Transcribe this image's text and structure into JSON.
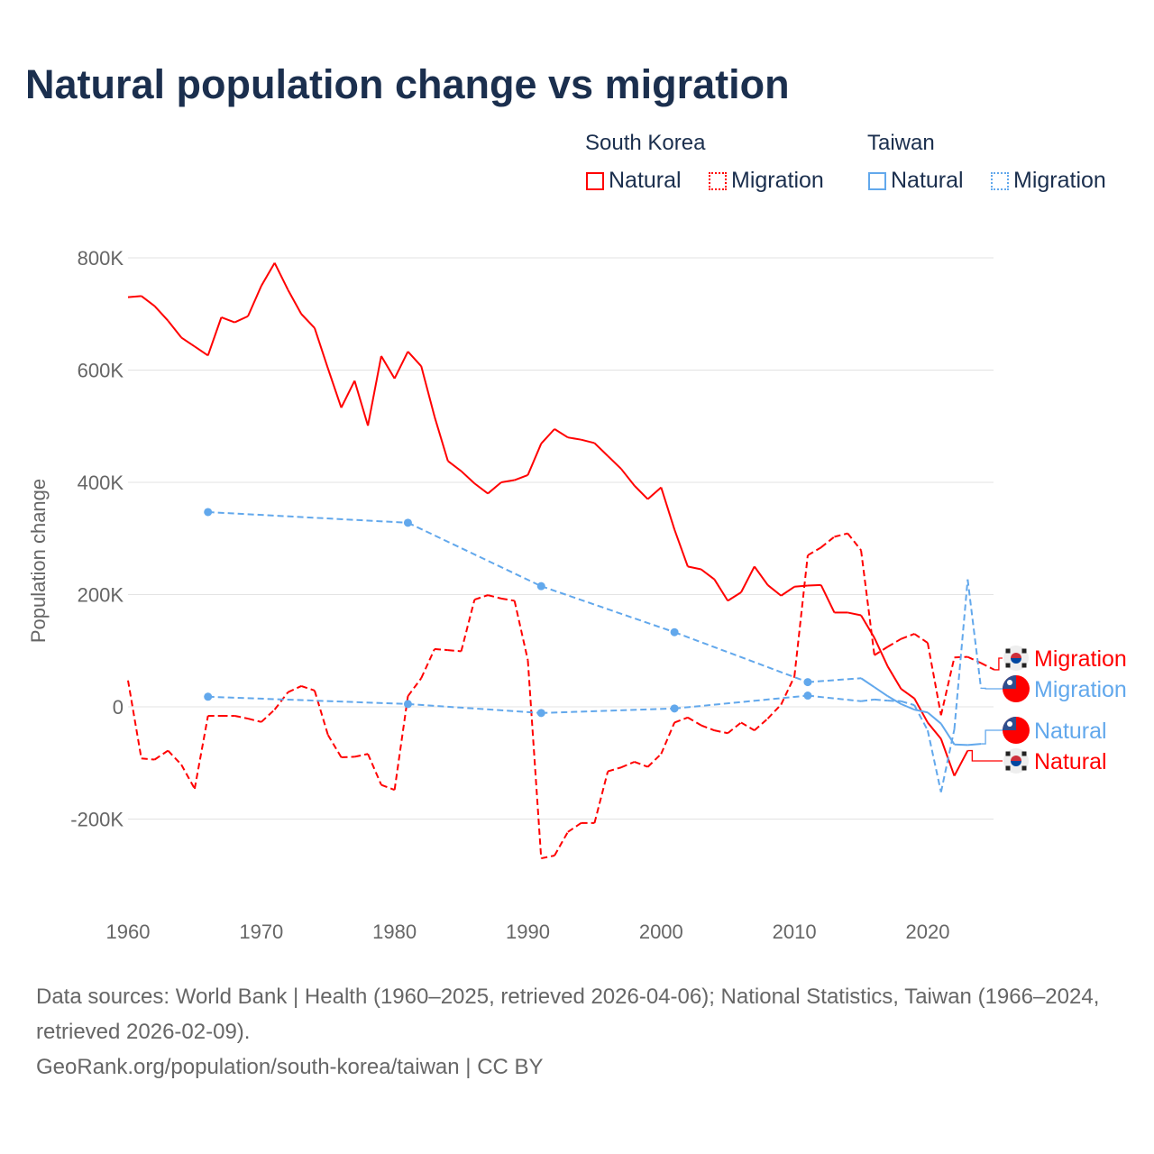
{
  "title": "Natural population change vs migration",
  "legend": {
    "groups": [
      {
        "name": "South Korea",
        "items": [
          "Natural",
          "Migration"
        ],
        "color": "#ff0000"
      },
      {
        "name": "Taiwan",
        "items": [
          "Natural",
          "Migration"
        ],
        "color": "#62a8ec"
      }
    ]
  },
  "footer": {
    "sources": "Data sources: World Bank | Health (1960–2025, retrieved 2026-04-06); National Statistics, Taiwan (1966–2024, retrieved 2026-02-09).",
    "credit": "GeoRank.org/population/south-korea/taiwan | CC BY"
  },
  "chart_data": {
    "type": "line",
    "title": "Natural population change vs migration",
    "xlabel": "",
    "ylabel": "Population change",
    "xlim": [
      1960,
      2025
    ],
    "ylim": [
      -300000,
      850000
    ],
    "xticks": [
      1960,
      1970,
      1980,
      1990,
      2000,
      2010,
      2020
    ],
    "yticks": [
      {
        "v": -200000,
        "label": "-200K"
      },
      {
        "v": 0,
        "label": "0"
      },
      {
        "v": 200000,
        "label": "200K"
      },
      {
        "v": 400000,
        "label": "400K"
      },
      {
        "v": 600000,
        "label": "600K"
      },
      {
        "v": 800000,
        "label": "800K"
      }
    ],
    "grid": true,
    "series": [
      {
        "name": "South Korea Natural",
        "label": "Natural",
        "country": "South Korea",
        "color": "#ff0000",
        "style": "solid",
        "x": [
          1960,
          1961,
          1962,
          1963,
          1964,
          1965,
          1966,
          1967,
          1968,
          1969,
          1970,
          1971,
          1972,
          1973,
          1974,
          1975,
          1976,
          1977,
          1978,
          1979,
          1980,
          1981,
          1982,
          1983,
          1984,
          1985,
          1986,
          1987,
          1988,
          1989,
          1990,
          1991,
          1992,
          1993,
          1994,
          1995,
          1996,
          1997,
          1998,
          1999,
          2000,
          2001,
          2002,
          2003,
          2004,
          2005,
          2006,
          2007,
          2008,
          2009,
          2010,
          2011,
          2012,
          2013,
          2014,
          2015,
          2016,
          2017,
          2018,
          2019,
          2020,
          2021,
          2022,
          2023
        ],
        "y": [
          730000,
          732000,
          714000,
          688000,
          658000,
          642000,
          626000,
          694000,
          685000,
          696000,
          750000,
          791000,
          743000,
          700000,
          675000,
          603000,
          533000,
          581000,
          501000,
          625000,
          585000,
          633000,
          607000,
          517000,
          438000,
          420000,
          398000,
          380000,
          400000,
          404000,
          413000,
          469000,
          495000,
          480000,
          476000,
          470000,
          447000,
          424000,
          394000,
          370000,
          391000,
          316000,
          250000,
          245000,
          227000,
          189000,
          204000,
          250000,
          217000,
          198000,
          214000,
          216000,
          217000,
          168000,
          168000,
          163000,
          123000,
          72000,
          32000,
          15000,
          -28000,
          -57000,
          -123000,
          -78000
        ]
      },
      {
        "name": "South Korea Migration",
        "label": "Migration",
        "country": "South Korea",
        "color": "#ff0000",
        "style": "dashed",
        "x": [
          1960,
          1961,
          1962,
          1963,
          1964,
          1965,
          1966,
          1967,
          1968,
          1969,
          1970,
          1971,
          1972,
          1973,
          1974,
          1975,
          1976,
          1977,
          1978,
          1979,
          1980,
          1981,
          1982,
          1983,
          1984,
          1985,
          1986,
          1987,
          1988,
          1989,
          1990,
          1991,
          1992,
          1993,
          1994,
          1995,
          1996,
          1997,
          1998,
          1999,
          2000,
          2001,
          2002,
          2003,
          2004,
          2005,
          2006,
          2007,
          2008,
          2009,
          2010,
          2011,
          2012,
          2013,
          2014,
          2015,
          2016,
          2017,
          2018,
          2019,
          2020,
          2021,
          2022,
          2023,
          2024,
          2025
        ],
        "y": [
          47000,
          -92000,
          -94000,
          -78000,
          -103000,
          -146000,
          -16000,
          -16000,
          -16000,
          -21000,
          -27000,
          -5000,
          26000,
          37000,
          29000,
          -50000,
          -90000,
          -89000,
          -84000,
          -139000,
          -148000,
          19000,
          51000,
          103000,
          101000,
          99000,
          191000,
          199000,
          193000,
          189000,
          83000,
          -270000,
          -265000,
          -223000,
          -207000,
          -207000,
          -115000,
          -108000,
          -98000,
          -107000,
          -84000,
          -28000,
          -19000,
          -33000,
          -42000,
          -47000,
          -28000,
          -42000,
          -21000,
          4000,
          54000,
          270000,
          284000,
          303000,
          309000,
          279000,
          92000,
          107000,
          121000,
          130000,
          114000,
          -15000,
          88000,
          89000,
          78000,
          66000
        ]
      },
      {
        "name": "Taiwan Natural",
        "label": "Natural",
        "country": "Taiwan",
        "color": "#62a8ec",
        "style": "solid",
        "x": [
          1966,
          1981,
          1991,
          2001,
          2011,
          2015,
          2016,
          2017,
          2018,
          2019,
          2020,
          2021,
          2022,
          2023,
          2024
        ],
        "y": [
          347000,
          328000,
          215000,
          133000,
          44000,
          51000,
          35000,
          19000,
          5000,
          -5000,
          -10000,
          -30000,
          -67000,
          -68000,
          -66000
        ]
      },
      {
        "name": "Taiwan Migration",
        "label": "Migration",
        "country": "Taiwan",
        "color": "#62a8ec",
        "style": "dashed",
        "x": [
          1966,
          1981,
          1991,
          2001,
          2011,
          2015,
          2016,
          2017,
          2018,
          2019,
          2020,
          2021,
          2022,
          2023,
          2024
        ],
        "y": [
          18000,
          5000,
          -11000,
          -3000,
          20000,
          10000,
          13000,
          11000,
          10000,
          3000,
          -42000,
          -152000,
          -40000,
          227000,
          33000
        ]
      }
    ]
  }
}
